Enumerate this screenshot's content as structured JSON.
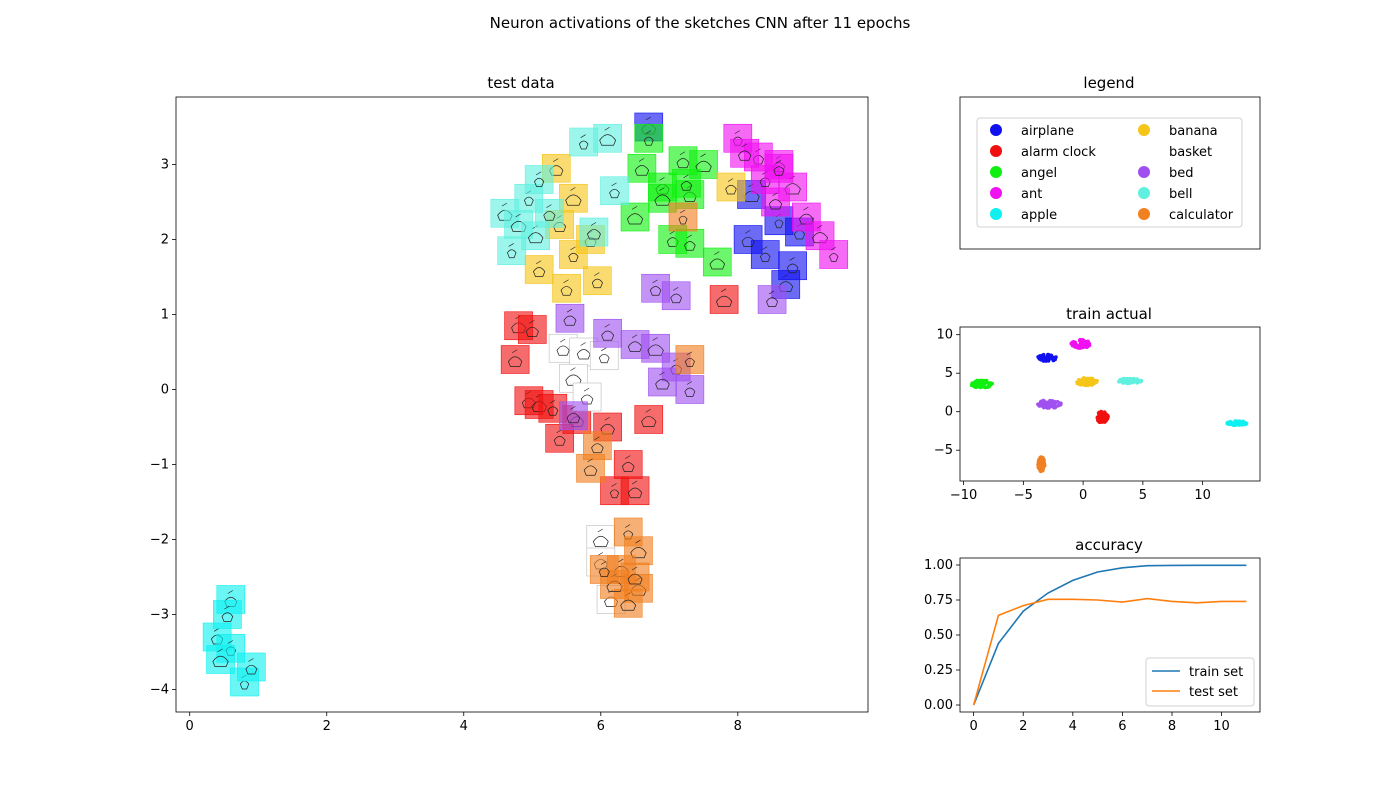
{
  "figure": {
    "suptitle": "Neuron activations of the sketches CNN after 11 epochs"
  },
  "chart_data": [
    {
      "id": "test-data",
      "type": "scatter",
      "title": "test data",
      "xlabel": "",
      "ylabel": "",
      "xlim": [
        -0.2,
        9.9
      ],
      "ylim": [
        -4.3,
        3.9
      ],
      "xticks": [
        0,
        2,
        4,
        6,
        8
      ],
      "yticks": [
        -4,
        -3,
        -2,
        -1,
        0,
        1,
        2,
        3
      ],
      "xtick_labels": [
        "0",
        "2",
        "4",
        "6",
        "8"
      ],
      "ytick_labels": [
        "−4",
        "−3",
        "−2",
        "−1",
        "0",
        "1",
        "2",
        "3"
      ],
      "marker": "sketch thumbnail tile",
      "series": [
        {
          "name": "airplane",
          "color": "#1010f0",
          "points": [
            [
              8.6,
              2.25
            ],
            [
              8.2,
              2.6
            ],
            [
              8.9,
              2.1
            ],
            [
              8.4,
              1.8
            ],
            [
              8.7,
              1.4
            ],
            [
              8.15,
              2.0
            ],
            [
              8.8,
              1.65
            ],
            [
              6.7,
              3.5
            ]
          ]
        },
        {
          "name": "alarm clock",
          "color": "#f01010",
          "points": [
            [
              4.8,
              0.85
            ],
            [
              5.0,
              0.8
            ],
            [
              4.75,
              0.4
            ],
            [
              4.95,
              -0.15
            ],
            [
              5.1,
              -0.2
            ],
            [
              5.3,
              -0.25
            ],
            [
              5.4,
              -0.65
            ],
            [
              5.65,
              -0.4
            ],
            [
              6.1,
              -0.5
            ],
            [
              6.2,
              -1.35
            ],
            [
              6.5,
              -1.35
            ],
            [
              6.4,
              -1.0
            ],
            [
              7.8,
              1.2
            ],
            [
              6.7,
              -0.4
            ]
          ]
        },
        {
          "name": "angel",
          "color": "#10f010",
          "points": [
            [
              6.7,
              3.35
            ],
            [
              7.2,
              3.05
            ],
            [
              7.5,
              3.0
            ],
            [
              6.6,
              2.95
            ],
            [
              6.9,
              2.7
            ],
            [
              7.3,
              2.6
            ],
            [
              6.5,
              2.3
            ],
            [
              6.9,
              2.55
            ],
            [
              7.05,
              2.0
            ],
            [
              7.3,
              1.95
            ],
            [
              7.7,
              1.7
            ],
            [
              7.25,
              2.75
            ]
          ]
        },
        {
          "name": "ant",
          "color": "#f010f0",
          "points": [
            [
              8.0,
              3.35
            ],
            [
              8.3,
              3.1
            ],
            [
              8.6,
              3.0
            ],
            [
              8.4,
              2.8
            ],
            [
              8.8,
              2.7
            ],
            [
              8.55,
              2.5
            ],
            [
              9.0,
              2.3
            ],
            [
              9.2,
              2.05
            ],
            [
              9.4,
              1.8
            ],
            [
              8.6,
              2.95
            ],
            [
              8.1,
              3.15
            ]
          ]
        },
        {
          "name": "apple",
          "color": "#10f0f0",
          "points": [
            [
              0.6,
              -2.8
            ],
            [
              0.4,
              -3.3
            ],
            [
              0.6,
              -3.45
            ],
            [
              0.45,
              -3.6
            ],
            [
              0.8,
              -3.9
            ],
            [
              0.9,
              -3.7
            ],
            [
              0.55,
              -3.0
            ]
          ]
        },
        {
          "name": "banana",
          "color": "#f5c518",
          "points": [
            [
              5.35,
              2.95
            ],
            [
              5.6,
              2.55
            ],
            [
              5.4,
              2.2
            ],
            [
              5.6,
              1.8
            ],
            [
              5.85,
              2.0
            ],
            [
              5.95,
              1.45
            ],
            [
              5.5,
              1.35
            ],
            [
              5.1,
              1.6
            ],
            [
              7.9,
              2.7
            ]
          ]
        },
        {
          "name": "basket",
          "color": "#c8c8c8",
          "points": [
            [
              5.45,
              0.55
            ],
            [
              5.75,
              0.5
            ],
            [
              6.05,
              0.45
            ],
            [
              5.6,
              0.15
            ],
            [
              5.8,
              -0.1
            ],
            [
              6.0,
              -2.0
            ],
            [
              6.0,
              -2.3
            ],
            [
              6.15,
              -2.8
            ]
          ]
        },
        {
          "name": "bed",
          "color": "#a050f0",
          "points": [
            [
              5.55,
              0.95
            ],
            [
              6.1,
              0.75
            ],
            [
              6.5,
              0.6
            ],
            [
              6.8,
              0.55
            ],
            [
              7.1,
              0.3
            ],
            [
              6.9,
              0.1
            ],
            [
              7.3,
              0.0
            ],
            [
              5.6,
              -0.35
            ],
            [
              7.1,
              1.25
            ],
            [
              6.8,
              1.35
            ],
            [
              8.5,
              1.2
            ]
          ]
        },
        {
          "name": "bell",
          "color": "#60f0e0",
          "points": [
            [
              4.6,
              2.35
            ],
            [
              4.8,
              2.2
            ],
            [
              4.95,
              2.55
            ],
            [
              5.05,
              2.05
            ],
            [
              4.7,
              1.85
            ],
            [
              5.25,
              2.35
            ],
            [
              5.1,
              2.8
            ],
            [
              5.75,
              3.3
            ],
            [
              6.1,
              3.35
            ],
            [
              6.2,
              2.65
            ],
            [
              5.9,
              2.1
            ]
          ]
        },
        {
          "name": "calculator",
          "color": "#f08020",
          "points": [
            [
              7.3,
              0.4
            ],
            [
              5.95,
              -0.75
            ],
            [
              5.85,
              -1.05
            ],
            [
              6.4,
              -1.9
            ],
            [
              6.55,
              -2.15
            ],
            [
              6.3,
              -2.4
            ],
            [
              6.55,
              -2.65
            ],
            [
              6.4,
              -2.85
            ],
            [
              6.2,
              -2.6
            ],
            [
              6.5,
              -2.5
            ],
            [
              6.05,
              -2.4
            ],
            [
              7.2,
              2.3
            ]
          ]
        }
      ]
    },
    {
      "id": "legend-panel",
      "type": "legend",
      "title": "legend",
      "entries": [
        {
          "label": "airplane",
          "color": "#1010f0",
          "show_marker": true
        },
        {
          "label": "alarm clock",
          "color": "#f01010",
          "show_marker": true
        },
        {
          "label": "angel",
          "color": "#10f010",
          "show_marker": true
        },
        {
          "label": "ant",
          "color": "#f010f0",
          "show_marker": true
        },
        {
          "label": "apple",
          "color": "#10f0f0",
          "show_marker": true
        },
        {
          "label": "banana",
          "color": "#f5c518",
          "show_marker": true
        },
        {
          "label": "basket",
          "color": "#ffffff",
          "show_marker": false
        },
        {
          "label": "bed",
          "color": "#a050f0",
          "show_marker": true
        },
        {
          "label": "bell",
          "color": "#60f0e0",
          "show_marker": true
        },
        {
          "label": "calculator",
          "color": "#f08020",
          "show_marker": true
        }
      ]
    },
    {
      "id": "train-actual",
      "type": "scatter",
      "title": "train actual",
      "xlabel": "",
      "ylabel": "",
      "xlim": [
        -10.3,
        14.8
      ],
      "ylim": [
        -9.0,
        11.0
      ],
      "xticks": [
        -10,
        -5,
        0,
        5,
        10
      ],
      "yticks": [
        -5,
        0,
        5,
        10
      ],
      "xtick_labels": [
        "−10",
        "−5",
        "0",
        "5",
        "10"
      ],
      "ytick_labels": [
        "−5",
        "0",
        "5",
        "10"
      ],
      "clusters": [
        {
          "name": "airplane",
          "color": "#1010f0",
          "center": [
            -3.0,
            7.0
          ],
          "spread": [
            0.8,
            0.45
          ]
        },
        {
          "name": "ant",
          "color": "#f010f0",
          "center": [
            -0.2,
            8.8
          ],
          "spread": [
            0.8,
            0.55
          ]
        },
        {
          "name": "angel",
          "color": "#10f010",
          "center": [
            -8.5,
            3.6
          ],
          "spread": [
            0.9,
            0.55
          ]
        },
        {
          "name": "banana",
          "color": "#f5c518",
          "center": [
            0.3,
            3.9
          ],
          "spread": [
            0.9,
            0.5
          ]
        },
        {
          "name": "bell",
          "color": "#60f0e0",
          "center": [
            3.9,
            4.0
          ],
          "spread": [
            1.0,
            0.35
          ]
        },
        {
          "name": "bed",
          "color": "#a050f0",
          "center": [
            -2.8,
            1.0
          ],
          "spread": [
            1.0,
            0.55
          ]
        },
        {
          "name": "alarm clock",
          "color": "#f01010",
          "center": [
            1.6,
            -0.7
          ],
          "spread": [
            0.5,
            0.75
          ]
        },
        {
          "name": "apple",
          "color": "#10f0f0",
          "center": [
            12.9,
            -1.5
          ],
          "spread": [
            0.85,
            0.3
          ]
        },
        {
          "name": "calculator",
          "color": "#f08020",
          "center": [
            -3.5,
            -6.8
          ],
          "spread": [
            0.3,
            0.95
          ]
        }
      ]
    },
    {
      "id": "accuracy",
      "type": "line",
      "title": "accuracy",
      "xlabel": "",
      "ylabel": "",
      "xlim": [
        -0.55,
        11.55
      ],
      "ylim": [
        -0.05,
        1.05
      ],
      "xticks": [
        0,
        2,
        4,
        6,
        8,
        10
      ],
      "yticks": [
        0.0,
        0.25,
        0.5,
        0.75,
        1.0
      ],
      "xtick_labels": [
        "0",
        "2",
        "4",
        "6",
        "8",
        "10"
      ],
      "ytick_labels": [
        "0.00",
        "0.25",
        "0.50",
        "0.75",
        "1.00"
      ],
      "legend_position": "lower right",
      "x": [
        0,
        1,
        2,
        3,
        4,
        5,
        6,
        7,
        8,
        9,
        10,
        11
      ],
      "series": [
        {
          "name": "train set",
          "color": "#1f77b4",
          "values": [
            0.0,
            0.44,
            0.67,
            0.8,
            0.89,
            0.95,
            0.98,
            0.995,
            0.997,
            0.998,
            0.998,
            0.998
          ]
        },
        {
          "name": "test set",
          "color": "#ff7f0e",
          "values": [
            0.0,
            0.64,
            0.71,
            0.755,
            0.755,
            0.75,
            0.735,
            0.76,
            0.74,
            0.73,
            0.74,
            0.74
          ]
        }
      ]
    }
  ]
}
